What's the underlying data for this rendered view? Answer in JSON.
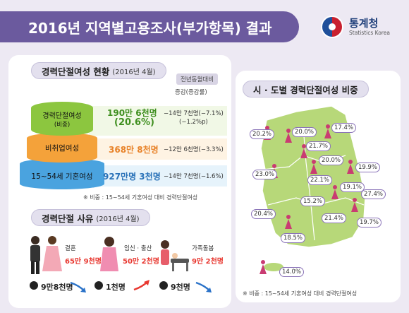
{
  "header": {
    "title": "2016년 지역별고용조사(부가항목) 결과"
  },
  "logo": {
    "name": "통계청",
    "sub": "Statistics Korea"
  },
  "status_section": {
    "title": "경력단절여성 현황",
    "period": "(2016년 4월)",
    "compare_label": "전년동월대비",
    "change_header": "증감(증감률)",
    "rows": [
      {
        "label": "경력단절여성",
        "sub": "(비중)",
        "value": "190만 6천명",
        "value2": "(20.6%)",
        "change": "−14만 7천명(−7.1%)",
        "change2": "(−1.2%p)"
      },
      {
        "label": "비취업여성",
        "value": "368만 8천명",
        "change": "−12만 6천명(−3.3%)"
      },
      {
        "label": "15~54세 기혼여성",
        "value": "927만명 3천명",
        "change": "−14만 7천명(−1.6%)"
      }
    ],
    "note": "※ 비중 : 15~54세 기혼여성 대비 경력단절여성"
  },
  "reason_section": {
    "title": "경력단절 사유",
    "period": "(2016년 4월)",
    "items": [
      {
        "label": "결혼",
        "value": "65만 9천명",
        "change": "9만8천명",
        "trend": "down"
      },
      {
        "label": "임신 · 출산",
        "value": "50만 2천명",
        "change": "1천명",
        "trend": "up"
      },
      {
        "label": "가족돌봄",
        "value": "9만 2천명",
        "change": "9천명",
        "trend": "down"
      }
    ]
  },
  "map_section": {
    "title": "시 · 도별 경력단절여성 비중",
    "regions": [
      "20.2%",
      "20.0%",
      "17.4%",
      "21.7%",
      "20.0%",
      "23.0%",
      "19.9%",
      "22.1%",
      "19.1%",
      "15.2%",
      "27.4%",
      "20.4%",
      "21.4%",
      "19.7%",
      "18.5%",
      "14.0%"
    ],
    "note": "※ 비중 : 15~54세 기혼여성 대비 경력단절여성"
  },
  "colors": {
    "purple": "#6b5a9e",
    "red": "#e8372f",
    "green": "#8cc63f",
    "orange": "#f4a23a",
    "blue": "#4aa3df"
  }
}
